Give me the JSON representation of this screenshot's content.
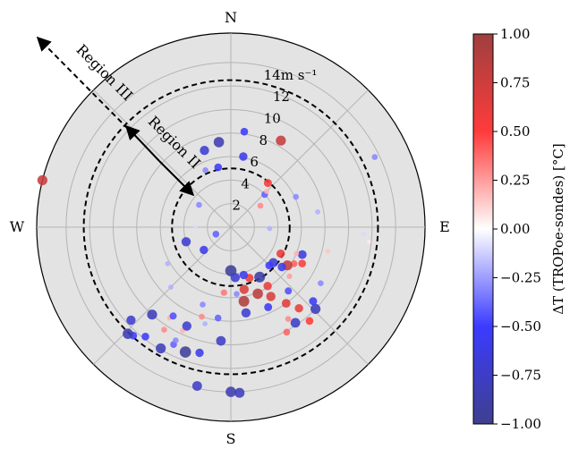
{
  "chart_data": {
    "type": "scatter",
    "coordinate_system": "polar",
    "theta_direction": "clockwise from north",
    "radial_ticks": [
      2,
      4,
      6,
      8,
      10,
      12,
      14
    ],
    "radial_unit": "m s⁻¹",
    "radial_max": 16.5,
    "compass_labels": [
      "N",
      "E",
      "S",
      "W"
    ],
    "grid": true,
    "colorbar": {
      "label": "ΔT (TROPoe-sondes) [°C]",
      "range": [
        -1.0,
        1.0
      ],
      "ticks": [
        "1.00",
        "0.75",
        "0.50",
        "0.25",
        "0.00",
        "−0.25",
        "−0.50",
        "−0.75",
        "−1.00"
      ],
      "colors": [
        "#3f3f8f",
        "#3b3bff",
        "#ffffff",
        "#ff3b3b",
        "#9f3f3f"
      ]
    },
    "boundaries": [
      {
        "radius": 5,
        "style": "dashed"
      },
      {
        "radius": 12.5,
        "style": "dashed"
      }
    ],
    "regions": [
      "Region II",
      "Region III"
    ],
    "points": [
      {
        "dir": 150,
        "speed": 4.9,
        "dt": -0.9
      },
      {
        "dir": 180,
        "speed": 3.7,
        "dt": -0.95
      },
      {
        "dir": 160,
        "speed": 4.6,
        "dt": 0.6
      },
      {
        "dir": 168,
        "speed": 5.4,
        "dt": 0.7
      },
      {
        "dir": 158,
        "speed": 6.1,
        "dt": 0.85
      },
      {
        "dir": 170,
        "speed": 6.4,
        "dt": 0.9
      },
      {
        "dir": 175,
        "speed": 4.3,
        "dt": -0.7
      },
      {
        "dir": 165,
        "speed": 4.2,
        "dt": -0.6
      },
      {
        "dir": 148,
        "speed": 5.9,
        "dt": 0.6
      },
      {
        "dir": 144,
        "speed": 8.0,
        "dt": 0.65
      },
      {
        "dir": 155,
        "speed": 7.5,
        "dt": -0.55
      },
      {
        "dir": 150,
        "speed": 6.8,
        "dt": 0.7
      },
      {
        "dir": 175,
        "speed": 5.7,
        "dt": -0.3
      },
      {
        "dir": 170,
        "speed": 7.4,
        "dt": -0.7
      },
      {
        "dir": 186,
        "speed": 5.6,
        "dt": 0.35
      },
      {
        "dir": 188,
        "speed": 7.8,
        "dt": -0.4
      },
      {
        "dir": 185,
        "speed": 9.7,
        "dt": -0.75
      },
      {
        "dir": 130,
        "speed": 4.7,
        "dt": -0.7
      },
      {
        "dir": 118,
        "speed": 4.8,
        "dt": 0.6
      },
      {
        "dir": 120,
        "speed": 6.2,
        "dt": 0.4
      },
      {
        "dir": 130,
        "speed": 6.5,
        "dt": 0.25
      },
      {
        "dir": 117,
        "speed": 6.8,
        "dt": 0.5
      },
      {
        "dir": 111,
        "speed": 6.5,
        "dt": -0.65
      },
      {
        "dir": 124,
        "speed": 5.8,
        "dt": 0.8
      },
      {
        "dir": 128,
        "speed": 5.5,
        "dt": -0.6
      },
      {
        "dir": 135,
        "speed": 4.6,
        "dt": -0.5
      },
      {
        "dir": 138,
        "speed": 7.3,
        "dt": -0.45
      },
      {
        "dir": 140,
        "speed": 9.0,
        "dt": 0.6
      },
      {
        "dir": 148,
        "speed": 9.2,
        "dt": 0.3
      },
      {
        "dir": 146,
        "speed": 9.8,
        "dt": -0.75
      },
      {
        "dir": 152,
        "speed": 10.1,
        "dt": 0.4
      },
      {
        "dir": 140,
        "speed": 10.4,
        "dt": 0.5
      },
      {
        "dir": 134,
        "speed": 10.0,
        "dt": -0.8
      },
      {
        "dir": 132,
        "speed": 9.4,
        "dt": -0.55
      },
      {
        "dir": 122,
        "speed": 9.0,
        "dt": -0.3
      },
      {
        "dir": 112,
        "speed": 6.0,
        "dt": 0.2
      },
      {
        "dir": 104,
        "speed": 8.5,
        "dt": 0.15
      },
      {
        "dir": 80,
        "speed": 7.5,
        "dt": -0.2
      },
      {
        "dir": 200,
        "speed": 7.0,
        "dt": -0.3
      },
      {
        "dir": 205,
        "speed": 9.7,
        "dt": 0.2
      },
      {
        "dir": 204,
        "speed": 9.2,
        "dt": -0.7
      },
      {
        "dir": 200,
        "speed": 11.3,
        "dt": -0.95
      },
      {
        "dir": 194,
        "speed": 11.0,
        "dt": -0.6
      },
      {
        "dir": 206,
        "speed": 11.1,
        "dt": -0.4
      },
      {
        "dir": 210,
        "speed": 11.9,
        "dt": -0.8
      },
      {
        "dir": 213,
        "speed": 10.4,
        "dt": 0.3
      },
      {
        "dir": 206,
        "speed": 10.7,
        "dt": -0.3
      },
      {
        "dir": 214,
        "speed": 9.3,
        "dt": 0.2
      },
      {
        "dir": 218,
        "speed": 11.8,
        "dt": -0.5
      },
      {
        "dir": 222,
        "speed": 10.0,
        "dt": -0.8
      },
      {
        "dir": 213,
        "speed": 9.0,
        "dt": -0.45
      },
      {
        "dir": 222,
        "speed": 12.4,
        "dt": -0.5
      },
      {
        "dir": 224,
        "speed": 12.6,
        "dt": -0.85
      },
      {
        "dir": 227,
        "speed": 11.6,
        "dt": -0.7
      },
      {
        "dir": 195,
        "speed": 8.5,
        "dt": -0.2
      },
      {
        "dir": 198,
        "speed": 8.0,
        "dt": 0.3
      },
      {
        "dir": 192,
        "speed": 13.8,
        "dt": -0.75
      },
      {
        "dir": 177,
        "speed": 14.1,
        "dt": -0.8
      },
      {
        "dir": 180,
        "speed": 14.0,
        "dt": -0.85
      },
      {
        "dir": 230,
        "speed": 3.0,
        "dt": -0.6
      },
      {
        "dir": 252,
        "speed": 4.0,
        "dt": -0.7
      },
      {
        "dir": 245,
        "speed": 1.4,
        "dt": -0.4
      },
      {
        "dir": 305,
        "speed": 3.3,
        "dt": -0.3
      },
      {
        "dir": 336,
        "speed": 5.3,
        "dt": -0.3
      },
      {
        "dir": 352,
        "speed": 7.3,
        "dt": -0.85
      },
      {
        "dir": 341,
        "speed": 6.9,
        "dt": -0.7
      },
      {
        "dir": 348,
        "speed": 5.2,
        "dt": -0.5
      },
      {
        "dir": 8,
        "speed": 8.2,
        "dt": -0.5
      },
      {
        "dir": 10,
        "speed": 6.1,
        "dt": -0.6
      },
      {
        "dir": 30,
        "speed": 8.5,
        "dt": 0.8
      },
      {
        "dir": 40,
        "speed": 4.9,
        "dt": 0.55
      },
      {
        "dir": 46,
        "speed": 4.0,
        "dt": -0.4
      },
      {
        "dir": 54,
        "speed": 3.1,
        "dt": 0.3
      },
      {
        "dir": 64,
        "speed": 13.6,
        "dt": -0.3
      },
      {
        "dir": 45,
        "speed": 4.3,
        "dt": 0.2
      },
      {
        "dir": 65,
        "speed": 6.1,
        "dt": -0.3
      },
      {
        "dir": 92,
        "speed": 3.3,
        "dt": -0.2
      },
      {
        "dir": 96,
        "speed": 11.8,
        "dt": 0.05
      },
      {
        "dir": 93,
        "speed": 11.3,
        "dt": -0.1
      },
      {
        "dir": 284,
        "speed": 16.5,
        "dt": 0.8
      },
      {
        "dir": 270,
        "speed": 3.0,
        "dt": -0.1
      },
      {
        "dir": 225,
        "speed": 7.2,
        "dt": -0.2
      },
      {
        "dir": 240,
        "speed": 6.2,
        "dt": -0.2
      }
    ]
  }
}
